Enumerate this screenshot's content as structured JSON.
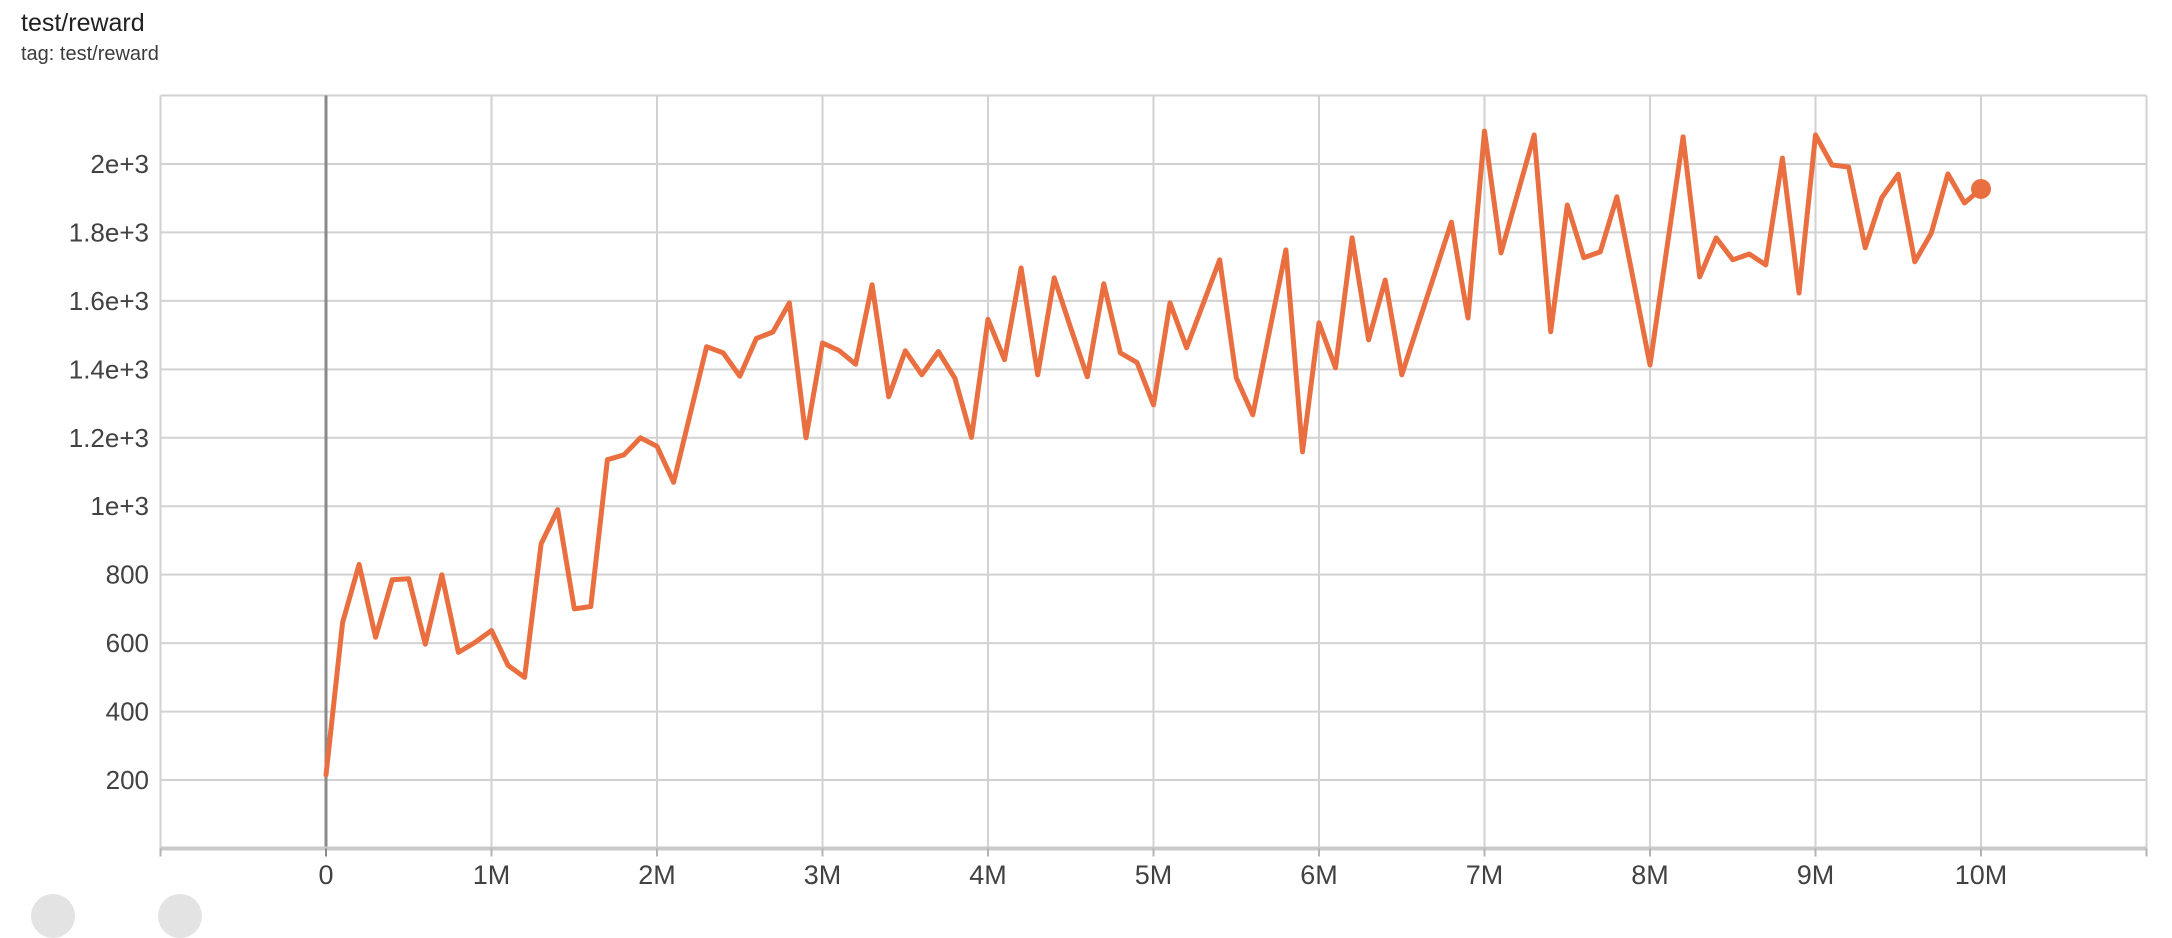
{
  "card": {
    "title": "test/reward",
    "subtitle": "tag: test/reward"
  },
  "colors": {
    "line": "#e96f41",
    "grid": "#d2d2d2",
    "zero_line": "#8a8a8a",
    "axis_line": "#c9c9c9",
    "tick": "#b3b3b3",
    "tick_label": "#424242",
    "title_text": "#212121",
    "subtitle_text": "#3c3c3c",
    "action_button": "#e3e3e3"
  },
  "chart_data": {
    "type": "line",
    "title": "test/reward",
    "tag": "test/reward",
    "grid": true,
    "legend": "none",
    "x_axis": {
      "unit": "steps",
      "range_millions": [
        -1,
        11
      ],
      "gridline_values_millions": [
        -1,
        0,
        1,
        2,
        3,
        4,
        5,
        6,
        7,
        8,
        9,
        10,
        11
      ],
      "tick_values_millions": [
        0,
        1,
        2,
        3,
        4,
        5,
        6,
        7,
        8,
        9,
        10
      ],
      "tick_labels": [
        "0",
        "1M",
        "2M",
        "3M",
        "4M",
        "5M",
        "6M",
        "7M",
        "8M",
        "9M",
        "10M"
      ]
    },
    "y_axis": {
      "range": [
        0,
        2200
      ],
      "gridline_values": [
        200,
        400,
        600,
        800,
        1000,
        1200,
        1400,
        1600,
        1800,
        2000,
        2200
      ],
      "tick_values": [
        200,
        400,
        600,
        800,
        1000,
        1200,
        1400,
        1600,
        1800,
        2000
      ],
      "tick_labels": [
        "200",
        "400",
        "600",
        "800",
        "1e+3",
        "1.2e+3",
        "1.4e+3",
        "1.6e+3",
        "1.8e+3",
        "2e+3"
      ]
    },
    "series": [
      {
        "name": "test/reward",
        "color": "#e96f41",
        "end_marker": true,
        "x_millions": [
          0,
          0.1,
          0.2,
          0.3,
          0.4,
          0.5,
          0.6,
          0.7,
          0.8,
          0.9,
          1,
          1.1,
          1.2,
          1.3,
          1.4,
          1.5,
          1.6,
          1.7,
          1.8,
          1.9,
          2,
          2.1,
          2.2,
          2.3,
          2.4,
          2.5,
          2.6,
          2.7,
          2.8,
          2.9,
          3,
          3.1,
          3.2,
          3.3,
          3.4,
          3.5,
          3.6,
          3.7,
          3.8,
          3.9,
          4,
          4.1,
          4.2,
          4.3,
          4.4,
          4.5,
          4.6,
          4.7,
          4.8,
          4.9,
          5,
          5.1,
          5.2,
          5.3,
          5.4,
          5.5,
          5.6,
          5.7,
          5.8,
          5.9,
          6,
          6.1,
          6.2,
          6.3,
          6.4,
          6.5,
          6.6,
          6.7,
          6.8,
          6.9,
          7,
          7.1,
          7.2,
          7.3,
          7.4,
          7.5,
          7.6,
          7.7,
          7.8,
          7.9,
          8,
          8.1,
          8.2,
          8.3,
          8.4,
          8.5,
          8.6,
          8.7,
          8.8,
          8.9,
          9,
          9.1,
          9.2,
          9.3,
          9.4,
          9.5,
          9.6,
          9.7,
          9.8,
          9.9,
          10
        ],
        "values": [
          215,
          660,
          830,
          617,
          785,
          788,
          597,
          800,
          573,
          602,
          637,
          535,
          500,
          890,
          990,
          700,
          707,
          1136,
          1150,
          1200,
          1175,
          1070,
          1268,
          1466,
          1448,
          1380,
          1490,
          1509,
          1594,
          1200,
          1477,
          1455,
          1415,
          1647,
          1320,
          1454,
          1384,
          1452,
          1374,
          1201,
          1546,
          1428,
          1696,
          1384,
          1667,
          1520,
          1378,
          1650,
          1448,
          1420,
          1296,
          1594,
          1463,
          1592,
          1720,
          1375,
          1267,
          1510,
          1749,
          1159,
          1536,
          1404,
          1784,
          1486,
          1661,
          1384,
          1533,
          1681,
          1830,
          1550,
          2096,
          1740,
          1913,
          2085,
          1510,
          1880,
          1726,
          1743,
          1904,
          1659,
          1413,
          1746,
          2079,
          1670,
          1784,
          1720,
          1737,
          1705,
          2017,
          1623,
          2085,
          1997,
          1991,
          1755,
          1901,
          1970,
          1714,
          1798,
          1971,
          1886,
          1927
        ]
      }
    ]
  }
}
